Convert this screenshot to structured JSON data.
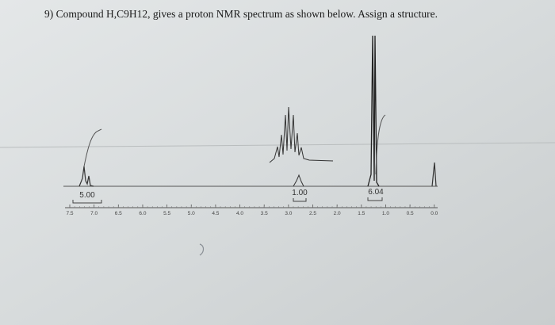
{
  "question": "9) Compound H,C9H12, gives a proton NMR spectrum as shown below. Assign a structure.",
  "spectrum": {
    "integrations": [
      "5.00",
      "1.00",
      "6.04"
    ],
    "axis_ticks": [
      "7.5",
      "7.0",
      "6.5",
      "6.0",
      "5.5",
      "5.0",
      "4.5",
      "4.0",
      "3.5",
      "3.0",
      "2.5",
      "2.0",
      "1.5",
      "1.0",
      "0.5",
      "0.0"
    ]
  }
}
